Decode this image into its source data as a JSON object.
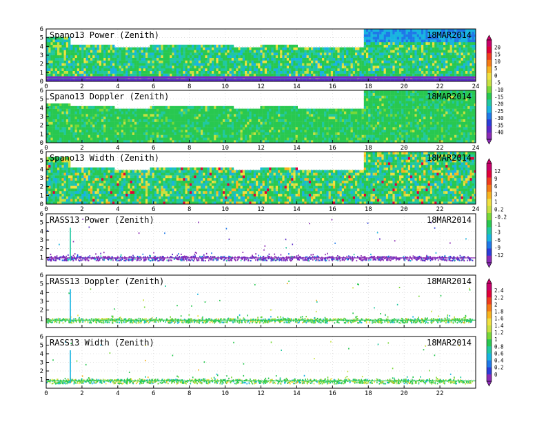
{
  "chart_data": [
    {
      "type": "heatmap",
      "title": "Spano13 Power (Zenith)",
      "date": "18MAR2014",
      "xlim": [
        0,
        24
      ],
      "ylim": [
        0,
        6
      ],
      "x_ticks": [
        "0",
        "2",
        "4",
        "6",
        "8",
        "10",
        "12",
        "14",
        "16",
        "18",
        "20",
        "22",
        "24"
      ],
      "y_ticks": [
        "0",
        "1",
        "2",
        "3",
        "4",
        "5",
        "6"
      ],
      "grid": true,
      "colorbar_id": "cb1",
      "top_profile": [
        [
          0,
          5.2
        ],
        [
          1.3,
          4.4
        ],
        [
          3.8,
          3.9
        ],
        [
          5.8,
          4.3
        ],
        [
          10.5,
          3.9
        ],
        [
          12,
          4.3
        ],
        [
          14,
          3.9
        ],
        [
          17.8,
          3.4
        ],
        [
          17.8,
          6
        ],
        [
          24,
          6
        ]
      ]
    },
    {
      "type": "heatmap",
      "title": "Spano13 Doppler (Zenith)",
      "date": "18MAR2014",
      "xlim": [
        0,
        24
      ],
      "ylim": [
        0,
        6
      ],
      "x_ticks": [
        "0",
        "2",
        "4",
        "6",
        "8",
        "10",
        "12",
        "14",
        "16",
        "18",
        "20",
        "22",
        "24"
      ],
      "y_ticks": [
        "0",
        "1",
        "2",
        "3",
        "4",
        "5",
        "6"
      ],
      "grid": true,
      "colorbar_id": "cb1",
      "top_profile": [
        [
          0,
          4.6
        ],
        [
          1.3,
          4.2
        ],
        [
          3.8,
          4.0
        ],
        [
          5.8,
          4.3
        ],
        [
          10.5,
          4.0
        ],
        [
          12,
          4.3
        ],
        [
          14,
          3.9
        ],
        [
          17.8,
          3.4
        ],
        [
          17.8,
          6
        ],
        [
          24,
          6
        ]
      ]
    },
    {
      "type": "heatmap",
      "title": "Spano13 Width (Zenith)",
      "date": "18MAR2014",
      "xlim": [
        0,
        24
      ],
      "ylim": [
        0,
        6
      ],
      "x_ticks": [
        "0",
        "2",
        "4",
        "6",
        "8",
        "10",
        "12",
        "14",
        "16",
        "18",
        "20",
        "22",
        "24"
      ],
      "y_ticks": [
        "0",
        "1",
        "2",
        "3",
        "4",
        "5",
        "6"
      ],
      "grid": true,
      "colorbar_id": "cb2",
      "top_profile": [
        [
          0,
          5.6
        ],
        [
          1.3,
          4.3
        ],
        [
          3.8,
          4.0
        ],
        [
          5.8,
          4.3
        ],
        [
          10.5,
          4.0
        ],
        [
          12,
          4.3
        ],
        [
          14,
          3.9
        ],
        [
          17.8,
          3.4
        ],
        [
          17.8,
          6
        ],
        [
          24,
          6
        ]
      ]
    },
    {
      "type": "scatter",
      "title": "RASS13 Power (Zenith)",
      "date": "18MAR2014",
      "xlim": [
        0,
        24
      ],
      "ylim": [
        0,
        6
      ],
      "x_ticks": [],
      "y_ticks": [
        "1",
        "2",
        "3",
        "4",
        "5",
        "6"
      ],
      "grid": true,
      "colorbar_id": "cb2",
      "band": [
        0.7,
        1.2
      ]
    },
    {
      "type": "scatter",
      "title": "RASS13 Doppler (Zenith)",
      "date": "18MAR2014",
      "xlim": [
        0,
        24
      ],
      "ylim": [
        0,
        6
      ],
      "x_ticks": [],
      "y_ticks": [
        "1",
        "2",
        "3",
        "4",
        "5",
        "6"
      ],
      "grid": true,
      "colorbar_id": "cb3",
      "band": [
        0.6,
        1.1
      ]
    },
    {
      "type": "scatter",
      "title": "RASS13 Width (Zenith)",
      "date": "18MAR2014",
      "xlim": [
        0,
        24
      ],
      "ylim": [
        0,
        6
      ],
      "x_ticks": [
        "0",
        "2",
        "4",
        "6",
        "8",
        "10",
        "12",
        "14",
        "16",
        "18",
        "20",
        "22"
      ],
      "y_ticks": [
        "1",
        "2",
        "3",
        "4",
        "5",
        "6"
      ],
      "grid": true,
      "colorbar_id": "cb3",
      "band": [
        0.6,
        1.1
      ]
    }
  ],
  "colorbars": [
    {
      "id": "cb1",
      "labels": [
        "20",
        "15",
        "10",
        "5",
        "0",
        "-5",
        "-10",
        "-15",
        "-20",
        "-25",
        "-30",
        "-35",
        "-40"
      ],
      "colors": [
        "#c8006a",
        "#e0003a",
        "#f03c1e",
        "#f57a14",
        "#f7b41e",
        "#f0e040",
        "#c8e040",
        "#78d838",
        "#28c850",
        "#20c8a0",
        "#18b4e0",
        "#1e78e8",
        "#2a3cd8",
        "#5a28c8",
        "#8a2ab4"
      ]
    },
    {
      "id": "cb2",
      "labels": [
        "12",
        "9",
        "6",
        "3",
        "1",
        "0.2",
        "-0.2",
        "-1",
        "-3",
        "-6",
        "-9",
        "-12"
      ],
      "colors": [
        "#c8006a",
        "#e0003a",
        "#f03c1e",
        "#f57a14",
        "#f7b41e",
        "#f0e040",
        "#c8e040",
        "#78d838",
        "#28c850",
        "#20c8a0",
        "#18b4e0",
        "#1e78e8",
        "#2a3cd8",
        "#8a2ab4"
      ]
    },
    {
      "id": "cb3",
      "labels": [
        "2.4",
        "2.2",
        "2",
        "1.8",
        "1.6",
        "1.4",
        "1.2",
        "1",
        "0.8",
        "0.6",
        "0.4",
        "0.2",
        "0"
      ],
      "colors": [
        "#c8006a",
        "#e0003a",
        "#f03c1e",
        "#f57a14",
        "#f7b41e",
        "#f0e040",
        "#c8e040",
        "#78d838",
        "#28c850",
        "#20c8a0",
        "#18b4e0",
        "#1e78e8",
        "#2a3cd8",
        "#8a2ab4"
      ]
    }
  ]
}
